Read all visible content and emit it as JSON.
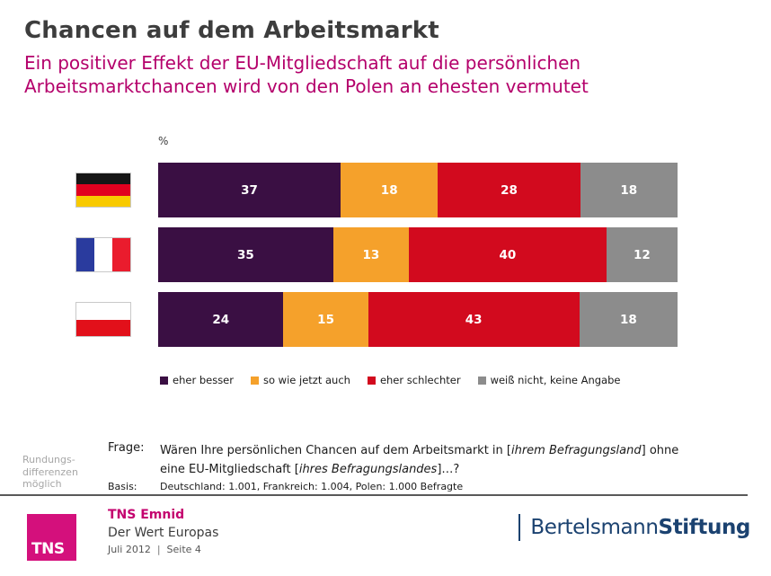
{
  "header": {
    "title": "Chancen auf dem Arbeitsmarkt",
    "subtitle": "Ein positiver Effekt der EU-Mitgliedschaft auf die persönlichen\nArbeitsmarktchancen wird von den Polen an ehesten vermutet"
  },
  "chart_data": {
    "type": "bar",
    "orientation": "horizontal",
    "stacked": true,
    "unit_label": "%",
    "value_labels": "inside",
    "legend_position": "bottom",
    "xlim": [
      0,
      100
    ],
    "categories": [
      "Deutschland",
      "Frankreich",
      "Polen"
    ],
    "series": [
      {
        "name": "eher besser",
        "color": "#3a0f43",
        "values": [
          37,
          35,
          24
        ]
      },
      {
        "name": "so wie jetzt auch",
        "color": "#f5a12b",
        "values": [
          18,
          13,
          15
        ]
      },
      {
        "name": "eher schlechter",
        "color": "#d20a1e",
        "values": [
          28,
          40,
          43
        ]
      },
      {
        "name": "weiß nicht, keine Angabe",
        "color": "#8c8c8c",
        "values": [
          18,
          12,
          18
        ]
      }
    ]
  },
  "notes": {
    "rounding": "Rundungs-\ndifferenzen\nmöglich",
    "question_label": "Frage:",
    "question_part1": "Wären Ihre persönlichen Chancen auf dem Arbeitsmarkt in [",
    "question_italic1": "ihrem Befragungsland",
    "question_part2": "] ohne\neine EU-Mitgliedschaft [",
    "question_italic2": "ihres Befragungslandes",
    "question_part3": "]…?",
    "basis_label": "Basis:",
    "basis_text": "Deutschland: 1.001, Frankreich: 1.004, Polen: 1.000 Befragte"
  },
  "footer": {
    "logo_text": "TNS",
    "brand": "TNS Emnid",
    "project": "Der Wert Europas",
    "date": "Juli 2012",
    "separator": "|",
    "page": "Seite 4",
    "partner_regular": "Bertelsmann",
    "partner_bold": "Stiftung"
  },
  "colors": {
    "title_text": "#3d3d3d",
    "accent_magenta": "#b4006b",
    "tns_pink": "#d4107c",
    "tns_brand_text": "#c4006e",
    "bertelsmann_navy": "#1b4270",
    "footer_rule": "#595959"
  }
}
